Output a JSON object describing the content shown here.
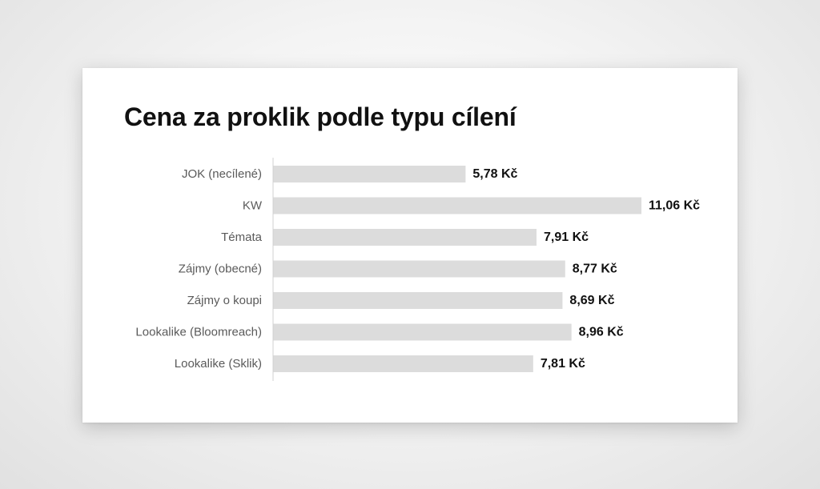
{
  "chart_data": {
    "type": "bar",
    "orientation": "horizontal",
    "title": "Cena za proklik podle typu cílení",
    "xlabel": "",
    "ylabel": "",
    "categories": [
      "JOK (necílené)",
      "KW",
      "Témata",
      "Zájmy (obecné)",
      "Zájmy o koupi",
      "Lookalike (Bloomreach)",
      "Lookalike (Sklik)"
    ],
    "values": [
      5.78,
      11.06,
      7.91,
      8.77,
      8.69,
      8.96,
      7.81
    ],
    "value_labels": [
      "5,78 Kč",
      "11,06 Kč",
      "7,91 Kč",
      "8,77 Kč",
      "8,69 Kč",
      "8,96 Kč",
      "7,81 Kč"
    ],
    "unit": "Kč",
    "xlim": [
      0,
      11.06
    ],
    "grid": false,
    "legend": "none",
    "bar_color": "#dcdcdc",
    "axis_color": "#d0d0d0",
    "label_color": "#5a5a5a",
    "value_color": "#111111"
  }
}
